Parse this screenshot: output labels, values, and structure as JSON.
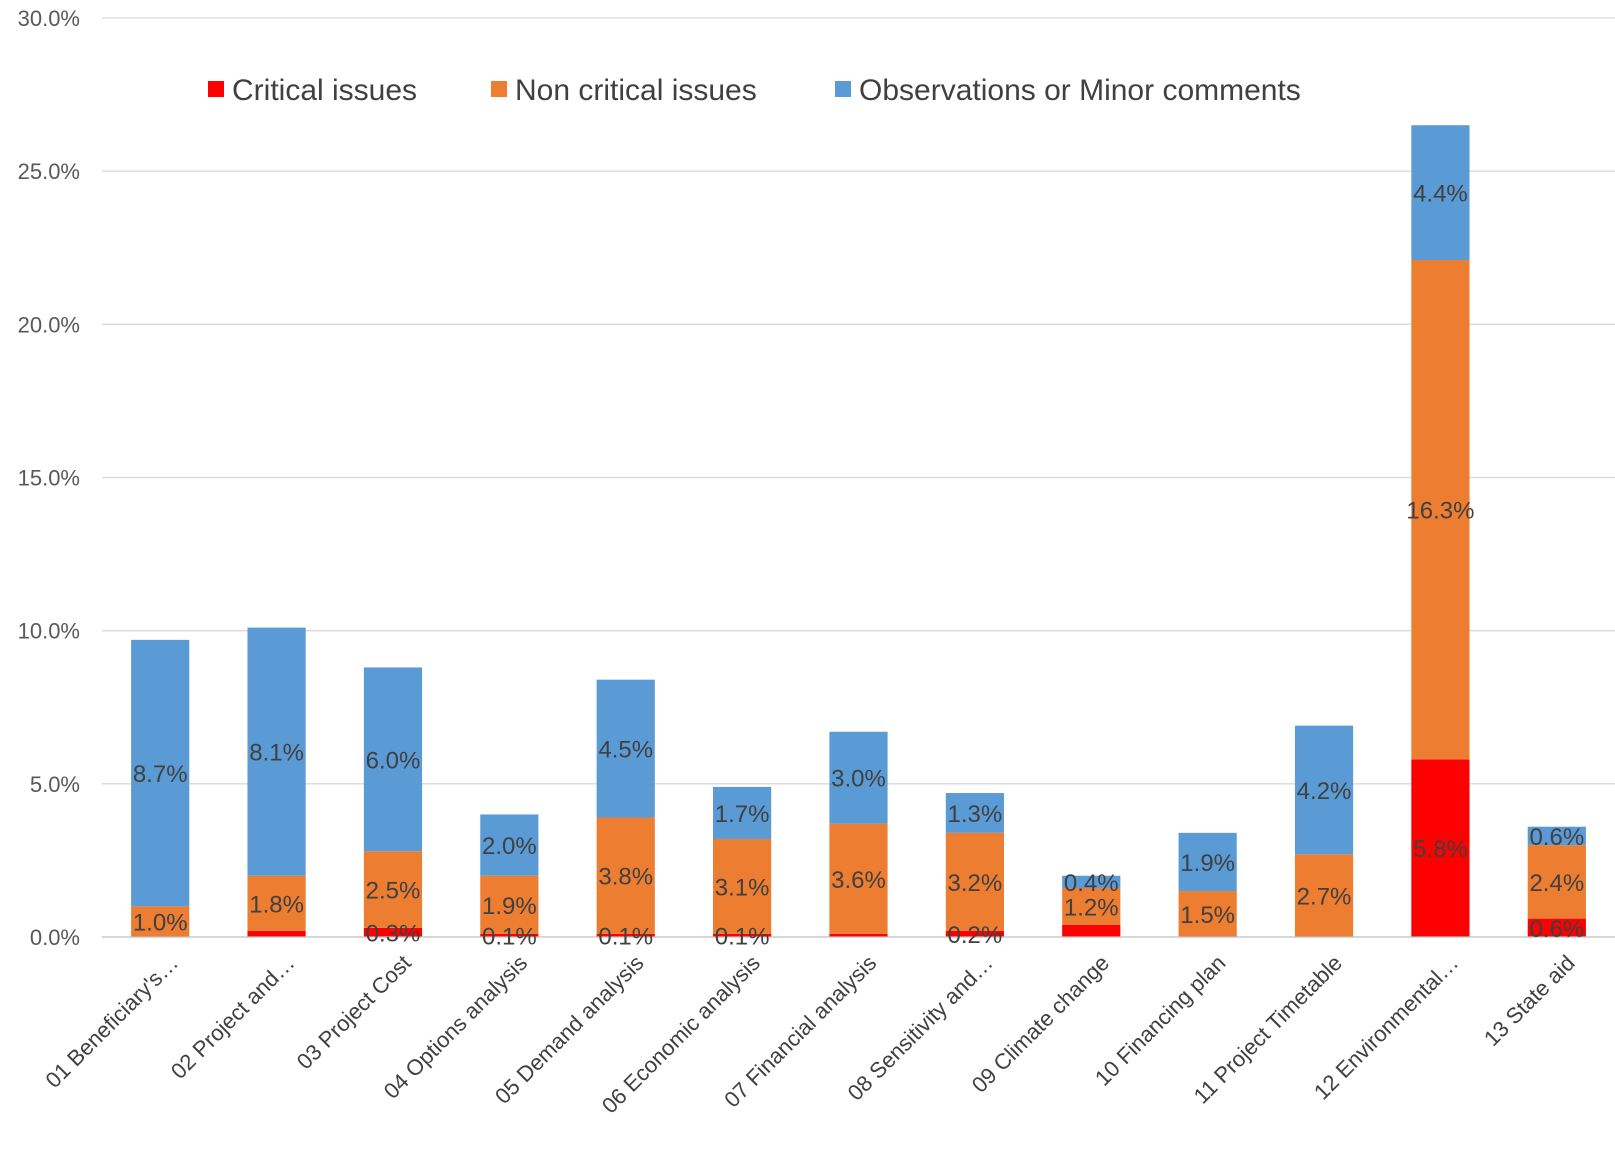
{
  "chart_data": {
    "type": "bar",
    "stacked": true,
    "title": "",
    "xlabel": "",
    "ylabel": "",
    "ylim": [
      0,
      30
    ],
    "y_ticks": [
      "0.0%",
      "5.0%",
      "10.0%",
      "15.0%",
      "20.0%",
      "25.0%",
      "30.0%"
    ],
    "grid": true,
    "legend_position": "top",
    "categories": [
      "01 Beneficiary's…",
      "02 Project and…",
      "03 Project Cost",
      "04 Options analysis",
      "05 Demand analysis",
      "06 Economic analysis",
      "07 Financial analysis",
      "08 Sensitivity and…",
      "09 Climate change",
      "10 Financing plan",
      "11 Project Timetable",
      "12 Environmental…",
      "13 State aid"
    ],
    "series": [
      {
        "name": "Critical issues",
        "color": "#FF0000",
        "values": [
          0,
          0.2,
          0.3,
          0.1,
          0.1,
          0.1,
          0.1,
          0.2,
          0.4,
          0,
          0,
          5.8,
          0.6
        ],
        "labels": [
          "",
          "",
          "0.3%",
          "0.1%",
          "0.1%",
          "0.1%",
          "",
          "0.2%",
          "",
          "",
          "",
          "5.8%",
          "0.6%"
        ]
      },
      {
        "name": "Non critical issues",
        "color": "#ED7D31",
        "values": [
          1.0,
          1.8,
          2.5,
          1.9,
          3.8,
          3.1,
          3.6,
          3.2,
          1.2,
          1.5,
          2.7,
          16.3,
          2.4
        ],
        "labels": [
          "1.0%",
          "1.8%",
          "2.5%",
          "1.9%",
          "3.8%",
          "3.1%",
          "3.6%",
          "3.2%",
          "1.2%",
          "1.5%",
          "2.7%",
          "16.3%",
          "2.4%"
        ]
      },
      {
        "name": "Observations or Minor comments",
        "color": "#5B9BD5",
        "values": [
          8.7,
          8.1,
          6.0,
          2.0,
          4.5,
          1.7,
          3.0,
          1.3,
          0.4,
          1.9,
          4.2,
          4.4,
          0.6
        ],
        "labels": [
          "8.7%",
          "8.1%",
          "6.0%",
          "2.0%",
          "4.5%",
          "1.7%",
          "3.0%",
          "1.3%",
          "0.4%",
          "1.9%",
          "4.2%",
          "4.4%",
          "0.6%"
        ]
      }
    ]
  },
  "colors": {
    "gridline": "#D9D9D9",
    "axis": "#BFBFBF"
  }
}
